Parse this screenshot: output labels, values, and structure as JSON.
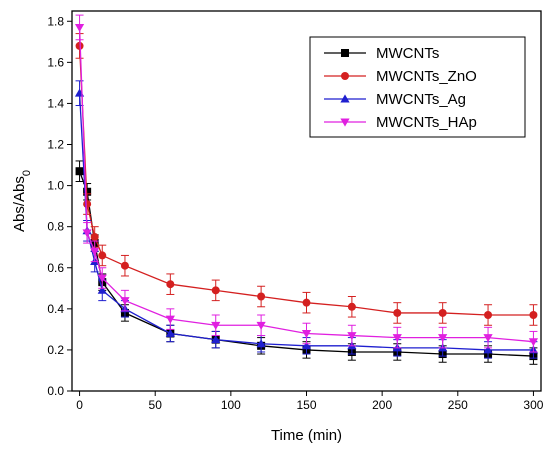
{
  "chart_data": {
    "type": "line",
    "xlabel": "Time (min)",
    "ylabel": {
      "main": "Abs/Abs",
      "sub": "0"
    },
    "xlim": [
      -5,
      305
    ],
    "ylim": [
      0.0,
      1.85
    ],
    "xticks": [
      0,
      50,
      100,
      150,
      200,
      250,
      300
    ],
    "yticks": [
      0.0,
      0.2,
      0.4,
      0.6,
      0.8,
      1.0,
      1.2,
      1.4,
      1.6,
      1.8
    ],
    "xtick_labels": [
      "0",
      "50",
      "100",
      "150",
      "200",
      "250",
      "300"
    ],
    "ytick_labels": [
      "0.0",
      "0.2",
      "0.4",
      "0.6",
      "0.8",
      "1.0",
      "1.2",
      "1.4",
      "1.6",
      "1.8"
    ],
    "grid": false,
    "legend_position": "top-right",
    "x": [
      0,
      5,
      10,
      15,
      30,
      60,
      90,
      120,
      150,
      180,
      210,
      240,
      270,
      300
    ],
    "series": [
      {
        "name": "MWCNTs",
        "color": "#000000",
        "marker": "square",
        "values": [
          1.07,
          0.97,
          0.72,
          0.53,
          0.38,
          0.28,
          0.25,
          0.22,
          0.2,
          0.19,
          0.19,
          0.18,
          0.18,
          0.17
        ],
        "errors": [
          0.05,
          0.04,
          0.04,
          0.04,
          0.04,
          0.04,
          0.04,
          0.04,
          0.04,
          0.04,
          0.04,
          0.04,
          0.04,
          0.04
        ]
      },
      {
        "name": "MWCNTs_ZnO",
        "color": "#d42020",
        "marker": "circle",
        "values": [
          1.68,
          0.91,
          0.75,
          0.66,
          0.61,
          0.52,
          0.49,
          0.46,
          0.43,
          0.41,
          0.38,
          0.38,
          0.37,
          0.37
        ],
        "errors": [
          0.06,
          0.05,
          0.05,
          0.05,
          0.05,
          0.05,
          0.05,
          0.05,
          0.05,
          0.05,
          0.05,
          0.05,
          0.05,
          0.05
        ]
      },
      {
        "name": "MWCNTs_Ag",
        "color": "#1f1fcf",
        "marker": "triangle-up",
        "values": [
          1.45,
          0.78,
          0.63,
          0.49,
          0.4,
          0.28,
          0.25,
          0.23,
          0.22,
          0.22,
          0.21,
          0.21,
          0.2,
          0.2
        ],
        "errors": [
          0.06,
          0.05,
          0.05,
          0.05,
          0.04,
          0.04,
          0.04,
          0.04,
          0.04,
          0.04,
          0.04,
          0.04,
          0.04,
          0.04
        ]
      },
      {
        "name": "MWCNTs_HAp",
        "color": "#e020e0",
        "marker": "triangle-down",
        "values": [
          1.77,
          0.77,
          0.68,
          0.55,
          0.44,
          0.35,
          0.32,
          0.32,
          0.28,
          0.27,
          0.26,
          0.26,
          0.26,
          0.24
        ],
        "errors": [
          0.06,
          0.05,
          0.05,
          0.05,
          0.05,
          0.05,
          0.05,
          0.05,
          0.05,
          0.05,
          0.05,
          0.05,
          0.05,
          0.05
        ]
      }
    ]
  }
}
